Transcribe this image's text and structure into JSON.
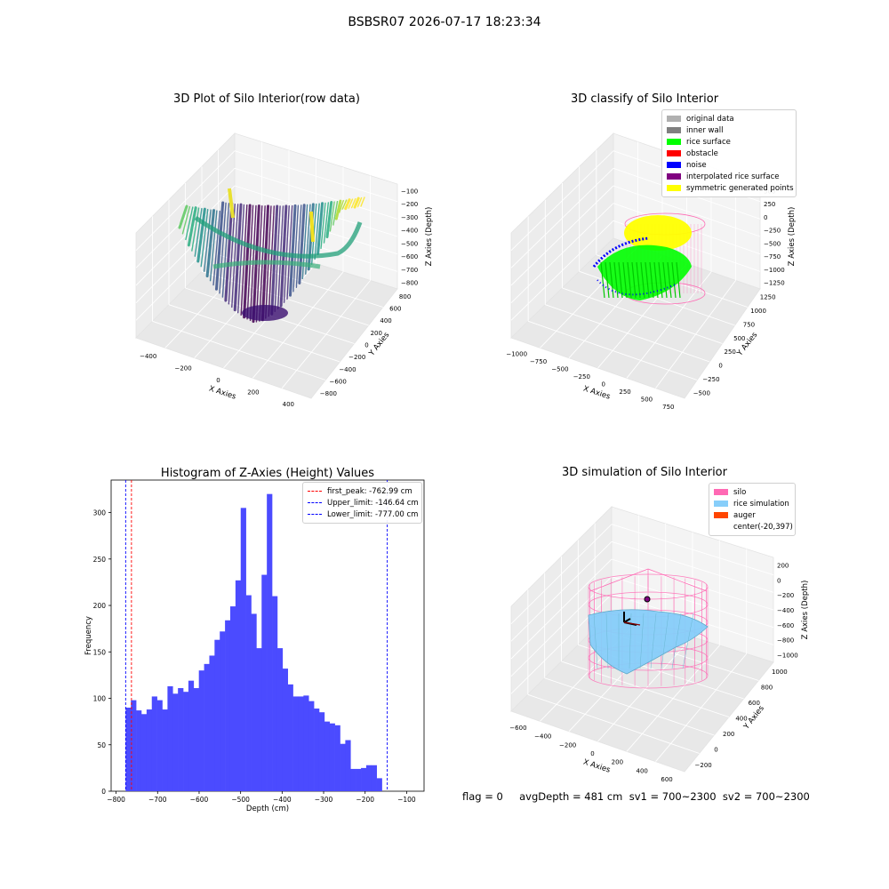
{
  "suptitle": "BSBSR07 2026-07-17 18:23:34",
  "footer_text": "flag = 0     avgDepth = 481 cm  sv1 = 700~2300  sv2 = 700~2300",
  "colors": {
    "hist_bar": "#4b4bff",
    "silo": "#ff69b4",
    "rice_simulation": "#87cefa",
    "auger": "#ff4500",
    "rice_surface": "#00ff00",
    "noise": "#0000ff",
    "symmetric": "#ffff00"
  },
  "panel1": {
    "title": "3D Plot of Silo Interior(row data)",
    "x_label": "X Axies",
    "y_label": "Y Axies",
    "z_label": "Z Axies (Depth)",
    "x_ticks": [
      "−400",
      "−200",
      "0",
      "200",
      "400"
    ],
    "y_ticks": [
      "800",
      "600",
      "400",
      "200",
      "0",
      "−200",
      "−400",
      "−600",
      "−800"
    ],
    "z_ticks": [
      "−100",
      "−200",
      "−300",
      "−400",
      "−500",
      "−600",
      "−700",
      "−800"
    ]
  },
  "panel2": {
    "title": "3D classify of Silo Interior",
    "x_label": "X Axies",
    "y_label": "Y Axies",
    "z_label": "Z Axies (Depth)",
    "x_ticks": [
      "−1000",
      "−750",
      "−500",
      "−250",
      "0",
      "250",
      "500",
      "750"
    ],
    "y_ticks": [
      "1250",
      "1000",
      "750",
      "500",
      "250",
      "0",
      "−250",
      "−500"
    ],
    "z_ticks": [
      "500",
      "250",
      "0",
      "−250",
      "−500",
      "−750",
      "−1000",
      "−1250"
    ],
    "legend": [
      {
        "label": "original data",
        "color": "#b0b0b0"
      },
      {
        "label": "inner wall",
        "color": "#808080"
      },
      {
        "label": "rice surface",
        "color": "#00ff00"
      },
      {
        "label": "obstacle",
        "color": "#ff0000"
      },
      {
        "label": "noise",
        "color": "#0000ff"
      },
      {
        "label": "interpolated rice surface",
        "color": "#800080"
      },
      {
        "label": "symmetric generated points",
        "color": "#ffff00"
      }
    ]
  },
  "panel4": {
    "title": "3D simulation of Silo Interior",
    "x_label": "X Axies",
    "y_label": "Y Axies",
    "z_label": "Z Axies (Depth)",
    "x_ticks": [
      "−600",
      "−400",
      "−200",
      "0",
      "200",
      "400",
      "600"
    ],
    "y_ticks": [
      "1000",
      "800",
      "600",
      "400",
      "200",
      "0",
      "−200"
    ],
    "z_ticks": [
      "200",
      "0",
      "−200",
      "−400",
      "−600",
      "−800",
      "−1000"
    ],
    "legend": [
      {
        "label": "silo",
        "color": "#ff69b4",
        "swatch": true
      },
      {
        "label": "rice simulation",
        "color": "#87cefa",
        "swatch": true
      },
      {
        "label": "auger",
        "color": "#ff4500",
        "swatch": true
      },
      {
        "label": "center(-20,397)",
        "color": "",
        "swatch": false
      }
    ]
  },
  "chart_data": [
    {
      "type": "histogram",
      "title": "Histogram of Z-Axies (Height) Values",
      "xlabel": "Depth (cm)",
      "ylabel": "Frequency",
      "xlim": [
        -812,
        -58
      ],
      "ylim": [
        0,
        335
      ],
      "x_ticks": [
        -800,
        -700,
        -600,
        -500,
        -400,
        -300,
        -200,
        -100
      ],
      "y_ticks": [
        0,
        50,
        100,
        150,
        200,
        250,
        300
      ],
      "bin_start": -777,
      "bin_width": 12.6,
      "counts": [
        90,
        98,
        87,
        83,
        88,
        102,
        98,
        88,
        113,
        105,
        111,
        107,
        119,
        111,
        130,
        137,
        146,
        163,
        172,
        184,
        199,
        227,
        305,
        211,
        191,
        154,
        233,
        320,
        210,
        154,
        132,
        115,
        102,
        102,
        103,
        97,
        89,
        85,
        75,
        73,
        71,
        51,
        55,
        24,
        24,
        25,
        28,
        28,
        14
      ],
      "lines": [
        {
          "label": "first_peak: -762.99 cm",
          "x": -762.99,
          "color": "#ff0000"
        },
        {
          "label": "Upper_limit: -146.64 cm",
          "x": -146.64,
          "color": "#0000ff"
        },
        {
          "label": "Lower_limit: -777.00 cm",
          "x": -777.0,
          "color": "#0000ff"
        }
      ],
      "legend_position": "top-right",
      "grid": false
    }
  ]
}
